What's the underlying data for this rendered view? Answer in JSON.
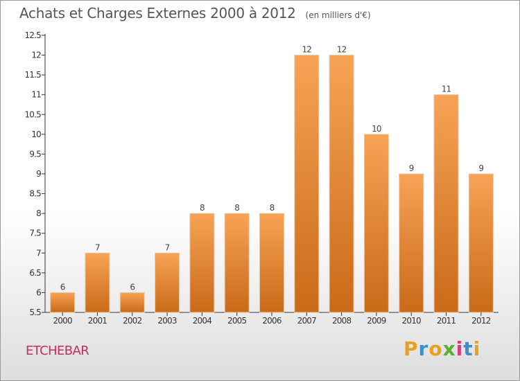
{
  "chart_data": {
    "type": "bar",
    "title": "Achats et Charges Externes 2000 à 2012",
    "subtitle": "(en milliers d'€)",
    "categories": [
      "2000",
      "2001",
      "2002",
      "2003",
      "2004",
      "2005",
      "2006",
      "2007",
      "2008",
      "2009",
      "2010",
      "2011",
      "2012"
    ],
    "values": [
      6,
      7,
      6,
      7,
      8,
      8,
      8,
      12,
      12,
      10,
      9,
      11,
      9
    ],
    "data_labels": [
      "6",
      "7",
      "6",
      "7",
      "8",
      "8",
      "8",
      "12",
      "12",
      "10",
      "9",
      "11",
      "9"
    ],
    "yticks": [
      "5.5",
      "6",
      "6.5",
      "7",
      "7.5",
      "8",
      "8.5",
      "9",
      "9.5",
      "10",
      "10.5",
      "11",
      "11.5",
      "12",
      "12.5"
    ],
    "ylim": [
      5.5,
      12.5
    ],
    "grid": false,
    "legend": "none",
    "bar_color_top": "#f7a355",
    "bar_color_bottom": "#c96a18",
    "xlabel": "",
    "ylabel": ""
  },
  "footer": {
    "commune": "ETCHEBAR",
    "commune_color": "#c0305a",
    "logo_letters": [
      "P",
      "r",
      "o",
      "x",
      "i",
      "t",
      "i"
    ],
    "logo_colors": [
      "#e8a020",
      "#3a8fd0",
      "#e8a020",
      "#58b030",
      "#d04080",
      "#3a8fd0",
      "#e8a020"
    ]
  }
}
